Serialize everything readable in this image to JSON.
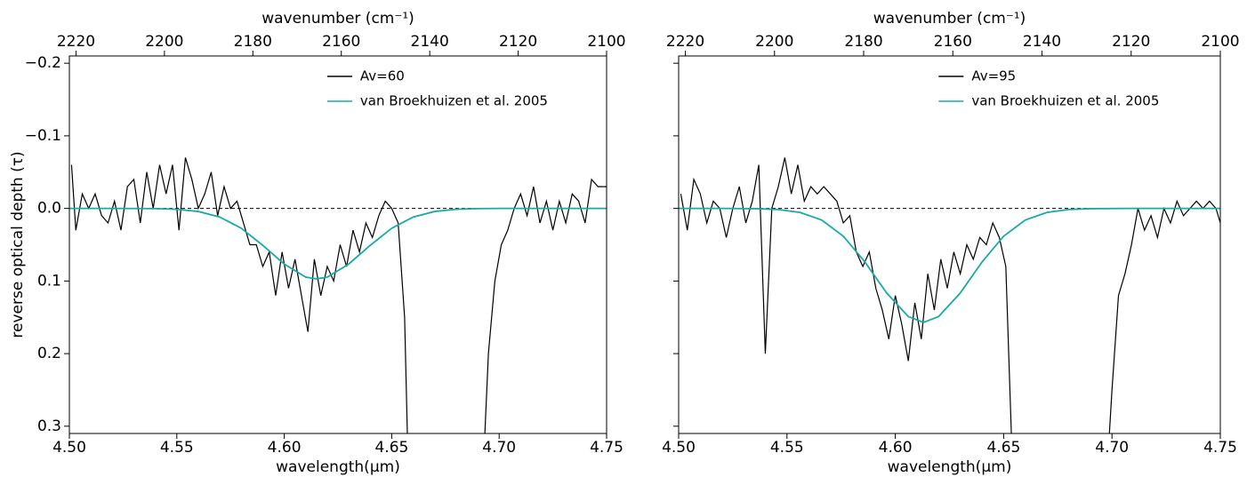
{
  "chart_data": [
    {
      "type": "line",
      "xlabel": "wavelength(μm)",
      "x2label": "wavenumber (cm⁻¹)",
      "ylabel": "reverse optical depth (τ)",
      "xlim": [
        4.5,
        4.75
      ],
      "xticks": [
        {
          "value": 4.5,
          "label": "4.50"
        },
        4.55,
        {
          "value": 4.6,
          "label": "4.60"
        },
        4.65,
        {
          "value": 4.7,
          "label": "4.70"
        },
        4.75
      ],
      "x2lim": [
        2221.5,
        2100
      ],
      "x2ticks": [
        2220,
        2200,
        2180,
        2160,
        2140,
        2120,
        2100
      ],
      "ylim": [
        0.31,
        -0.21
      ],
      "yticks": [
        {
          "value": -0.2,
          "label": "−0.2"
        },
        {
          "value": -0.1,
          "label": "−0.1"
        },
        {
          "value": 0,
          "label": "0.0"
        },
        0.1,
        0.2,
        0.3
      ],
      "ytick_labels": true,
      "reference_line": 0,
      "legend": "upper right",
      "series": [
        {
          "name": "Av=60",
          "color": "#000000",
          "x": [
            4.501,
            4.503,
            4.506,
            4.509,
            4.512,
            4.515,
            4.518,
            4.521,
            4.524,
            4.527,
            4.53,
            4.533,
            4.536,
            4.539,
            4.542,
            4.545,
            4.548,
            4.551,
            4.554,
            4.557,
            4.56,
            4.563,
            4.566,
            4.569,
            4.572,
            4.575,
            4.578,
            4.581,
            4.584,
            4.587,
            4.59,
            4.593,
            4.596,
            4.599,
            4.602,
            4.605,
            4.608,
            4.611,
            4.614,
            4.617,
            4.62,
            4.623,
            4.626,
            4.629,
            4.632,
            4.635,
            4.638,
            4.641,
            4.644,
            4.647,
            4.65,
            4.653,
            4.656,
            4.658,
            4.692,
            4.695,
            4.698,
            4.701,
            4.704,
            4.707,
            4.71,
            4.713,
            4.716,
            4.719,
            4.722,
            4.725,
            4.728,
            4.731,
            4.734,
            4.737,
            4.74,
            4.743,
            4.746,
            4.75
          ],
          "values": [
            -0.06,
            0.03,
            -0.02,
            0.0,
            -0.02,
            0.01,
            0.02,
            -0.01,
            0.03,
            -0.03,
            -0.04,
            0.02,
            -0.05,
            0.0,
            -0.06,
            -0.02,
            -0.06,
            0.03,
            -0.07,
            -0.04,
            0.0,
            -0.02,
            -0.05,
            0.01,
            -0.03,
            0.0,
            -0.01,
            0.02,
            0.05,
            0.05,
            0.08,
            0.06,
            0.12,
            0.06,
            0.11,
            0.07,
            0.12,
            0.17,
            0.07,
            0.12,
            0.08,
            0.1,
            0.05,
            0.08,
            0.03,
            0.06,
            0.02,
            0.04,
            0.01,
            -0.01,
            0.0,
            0.02,
            0.15,
            0.4,
            0.4,
            0.2,
            0.1,
            0.05,
            0.03,
            0.0,
            -0.02,
            0.01,
            -0.03,
            0.02,
            -0.01,
            0.03,
            -0.01,
            0.02,
            -0.02,
            -0.01,
            0.02,
            -0.04,
            -0.03,
            -0.03
          ]
        },
        {
          "name": "van Broekhuizen et al. 2005",
          "color": "#17aaa8",
          "x": [
            4.5,
            4.52,
            4.54,
            4.55,
            4.56,
            4.57,
            4.58,
            4.59,
            4.6,
            4.61,
            4.615,
            4.62,
            4.63,
            4.64,
            4.65,
            4.66,
            4.67,
            4.68,
            4.69,
            4.7,
            4.75
          ],
          "values": [
            0,
            0,
            0.0003,
            0.0012,
            0.0042,
            0.0119,
            0.0273,
            0.0509,
            0.0766,
            0.0947,
            0.097,
            0.0947,
            0.0766,
            0.0509,
            0.0273,
            0.0119,
            0.0042,
            0.0012,
            0.0003,
            0,
            0
          ]
        }
      ]
    },
    {
      "type": "line",
      "xlabel": "wavelength(μm)",
      "x2label": "wavenumber (cm⁻¹)",
      "xlim": [
        4.5,
        4.75
      ],
      "xticks": [
        {
          "value": 4.5,
          "label": "4.50"
        },
        4.55,
        {
          "value": 4.6,
          "label": "4.60"
        },
        4.65,
        {
          "value": 4.7,
          "label": "4.70"
        },
        4.75
      ],
      "x2lim": [
        2221.5,
        2100
      ],
      "x2ticks": [
        2220,
        2200,
        2180,
        2160,
        2140,
        2120,
        2100
      ],
      "ylim": [
        0.31,
        -0.21
      ],
      "yticks": [
        -0.2,
        -0.1,
        0,
        0.1,
        0.2,
        0.3
      ],
      "ytick_labels": false,
      "reference_line": 0,
      "legend": "upper right",
      "series": [
        {
          "name": "Av=95",
          "color": "#000000",
          "x": [
            4.501,
            4.504,
            4.507,
            4.51,
            4.513,
            4.516,
            4.519,
            4.522,
            4.525,
            4.528,
            4.531,
            4.534,
            4.537,
            4.54,
            4.543,
            4.546,
            4.549,
            4.552,
            4.555,
            4.558,
            4.561,
            4.564,
            4.567,
            4.57,
            4.573,
            4.576,
            4.579,
            4.582,
            4.585,
            4.588,
            4.591,
            4.594,
            4.597,
            4.6,
            4.603,
            4.606,
            4.609,
            4.612,
            4.615,
            4.618,
            4.621,
            4.624,
            4.627,
            4.63,
            4.633,
            4.636,
            4.639,
            4.642,
            4.645,
            4.648,
            4.651,
            4.654,
            4.657,
            4.697,
            4.7,
            4.703,
            4.706,
            4.709,
            4.712,
            4.715,
            4.718,
            4.721,
            4.724,
            4.727,
            4.73,
            4.733,
            4.736,
            4.739,
            4.742,
            4.745,
            4.748,
            4.75
          ],
          "values": [
            -0.02,
            0.03,
            -0.04,
            -0.02,
            0.02,
            -0.01,
            0.0,
            0.04,
            0.0,
            -0.03,
            0.02,
            -0.01,
            -0.06,
            0.2,
            0.0,
            -0.03,
            -0.07,
            -0.02,
            -0.06,
            -0.01,
            -0.03,
            -0.02,
            -0.03,
            -0.02,
            -0.01,
            0.02,
            0.01,
            0.06,
            0.08,
            0.06,
            0.11,
            0.14,
            0.18,
            0.12,
            0.16,
            0.21,
            0.13,
            0.18,
            0.09,
            0.14,
            0.07,
            0.11,
            0.06,
            0.09,
            0.05,
            0.07,
            0.04,
            0.05,
            0.02,
            0.04,
            0.08,
            0.35,
            0.4,
            0.4,
            0.25,
            0.12,
            0.09,
            0.05,
            0.0,
            0.03,
            0.01,
            0.04,
            0.0,
            0.02,
            -0.01,
            0.01,
            0.0,
            -0.01,
            0.0,
            -0.01,
            0.0,
            0.02
          ]
        },
        {
          "name": "van Broekhuizen et al. 2005",
          "color": "#17aaa8",
          "x": [
            4.5,
            4.52,
            4.536,
            4.546,
            4.556,
            4.566,
            4.576,
            4.586,
            4.596,
            4.606,
            4.613,
            4.62,
            4.63,
            4.64,
            4.65,
            4.66,
            4.67,
            4.68,
            4.69,
            4.71,
            4.75
          ],
          "values": [
            0,
            0,
            0.0004,
            0.0015,
            0.0055,
            0.016,
            0.0382,
            0.0739,
            0.1164,
            0.149,
            0.157,
            0.149,
            0.1164,
            0.0739,
            0.0382,
            0.016,
            0.0055,
            0.0015,
            0.0004,
            0,
            0
          ]
        }
      ]
    }
  ]
}
